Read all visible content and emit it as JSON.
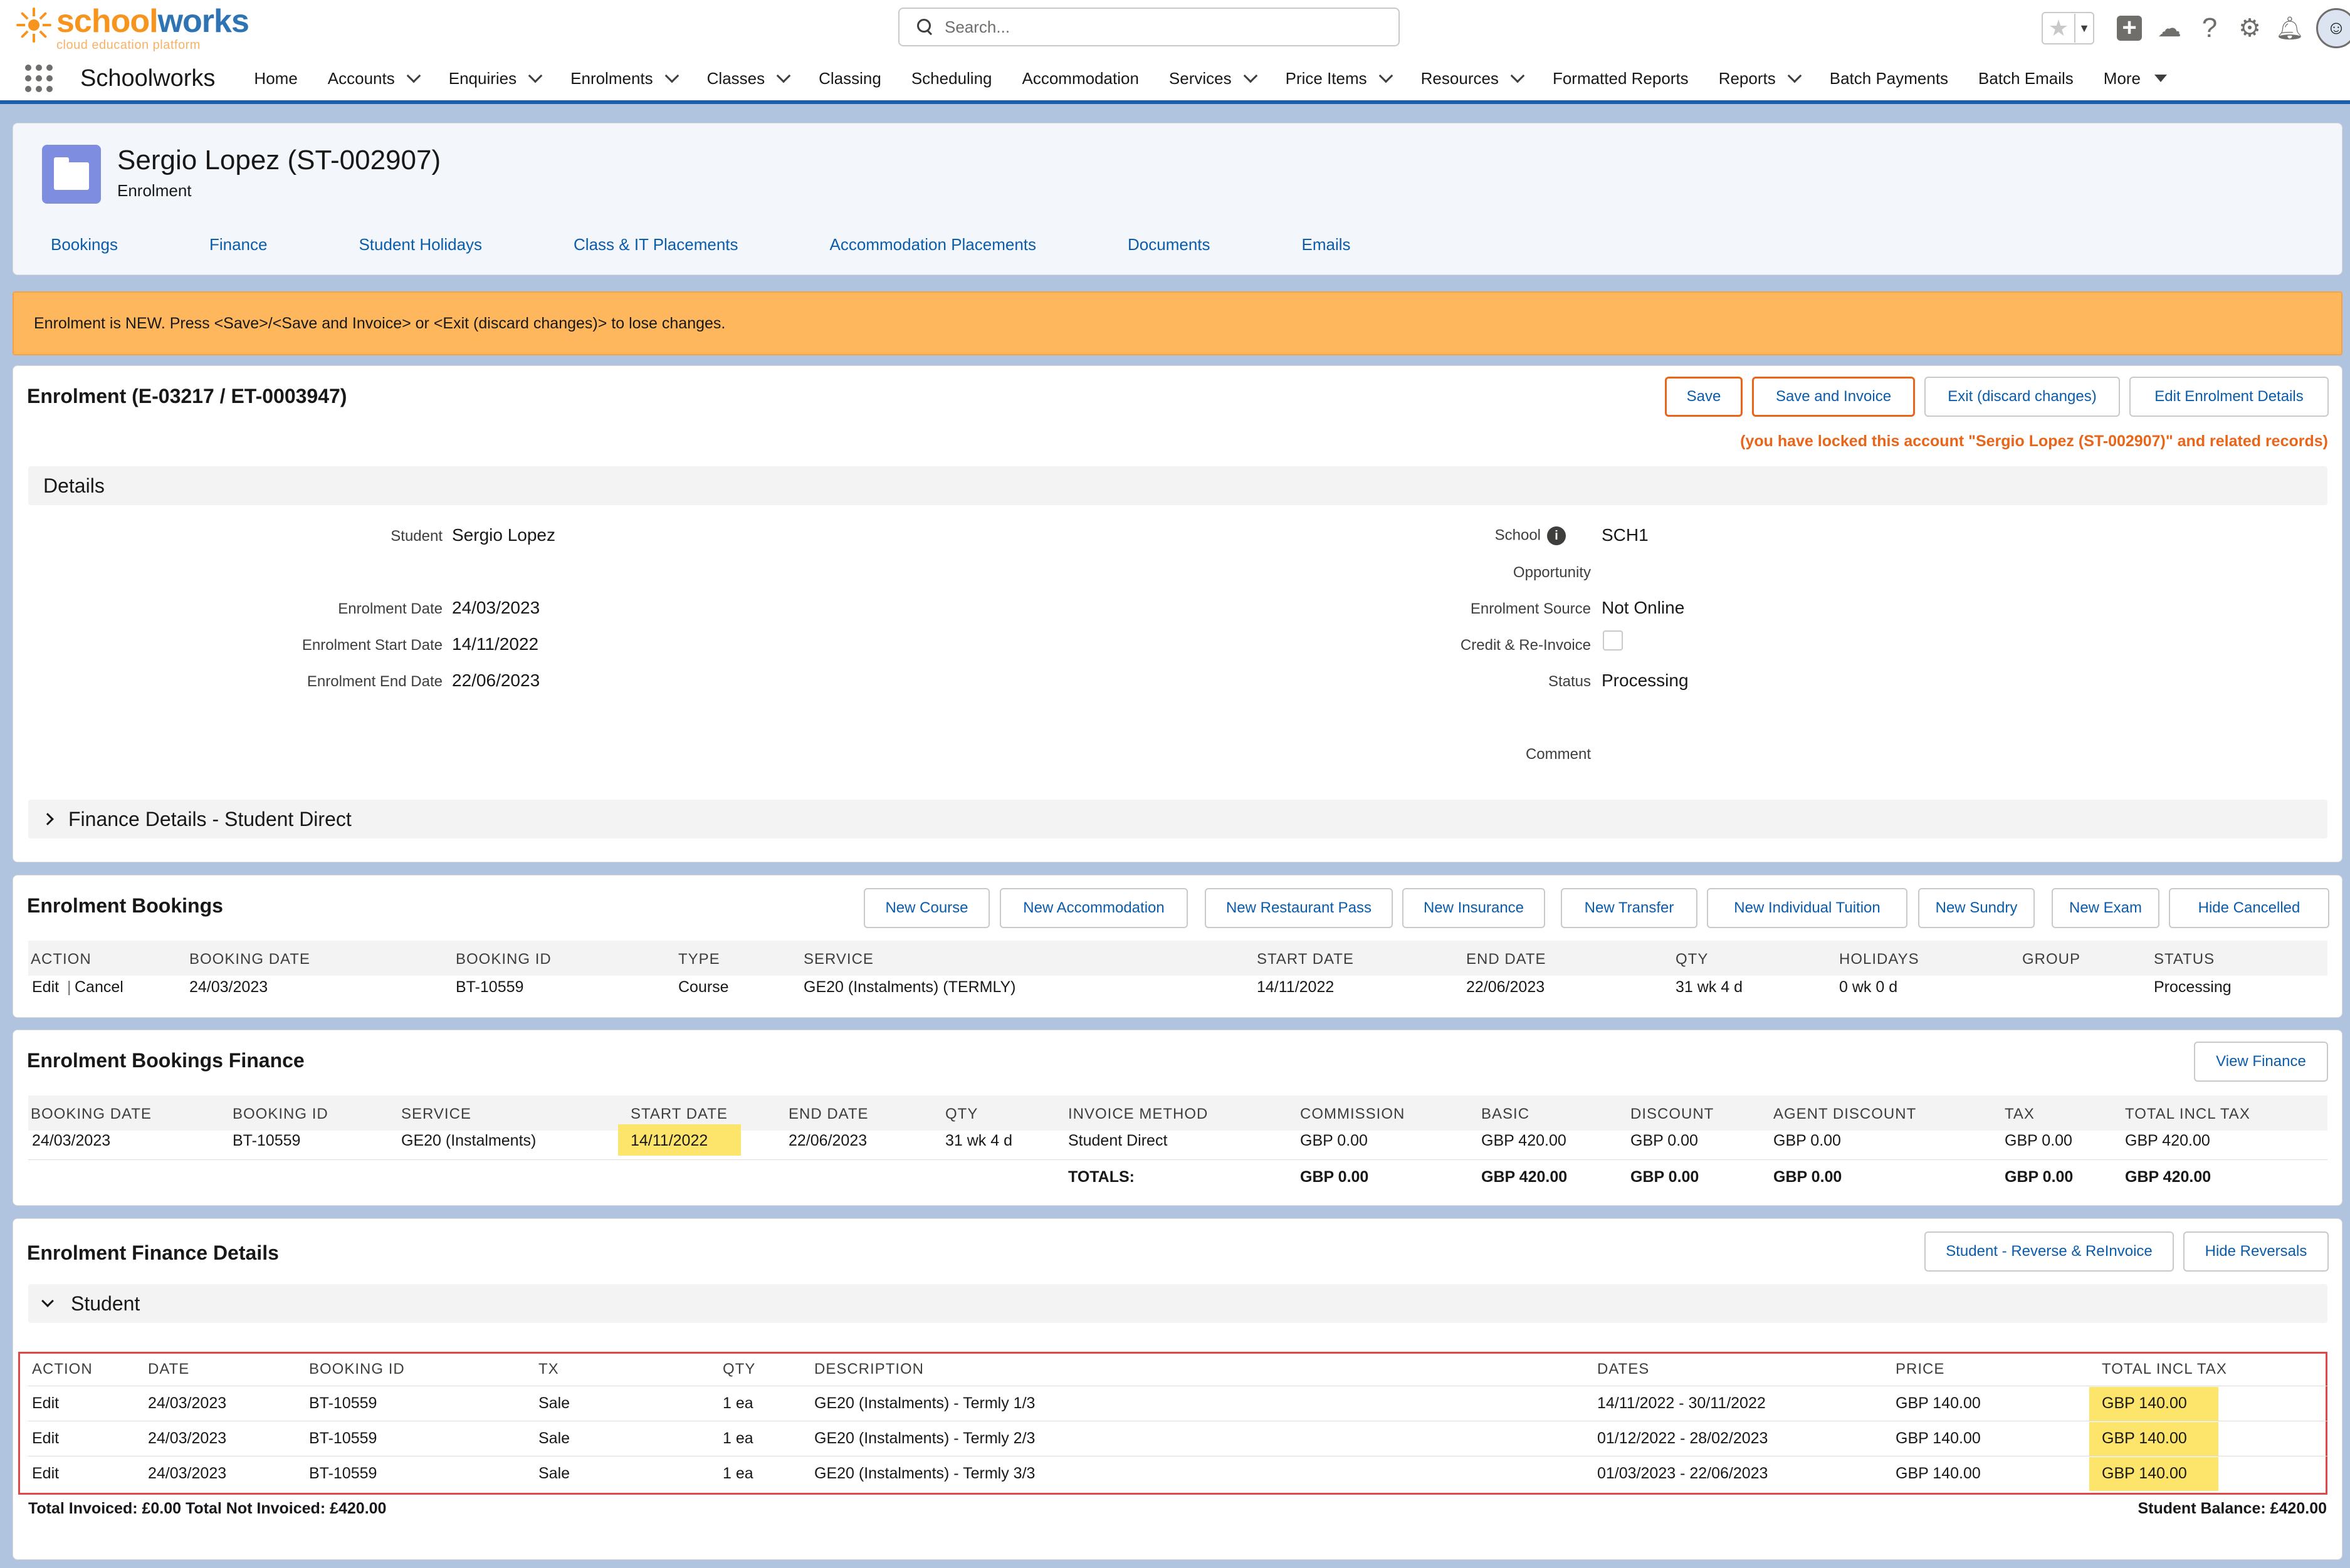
{
  "header": {
    "logo_main_a": "school",
    "logo_main_b": "works",
    "logo_sub": "cloud education platform",
    "search_placeholder": "Search...",
    "icons": [
      "favorites-star-icon",
      "add-icon",
      "trailhead-icon",
      "help-icon",
      "setup-gear-icon",
      "notification-bell-icon",
      "user-avatar"
    ]
  },
  "nav": {
    "app_name": "Schoolworks",
    "items": [
      {
        "label": "Home",
        "dropdown": false
      },
      {
        "label": "Accounts",
        "dropdown": true
      },
      {
        "label": "Enquiries",
        "dropdown": true
      },
      {
        "label": "Enrolments",
        "dropdown": true
      },
      {
        "label": "Classes",
        "dropdown": true
      },
      {
        "label": "Classing",
        "dropdown": false
      },
      {
        "label": "Scheduling",
        "dropdown": false
      },
      {
        "label": "Accommodation",
        "dropdown": false
      },
      {
        "label": "Services",
        "dropdown": true
      },
      {
        "label": "Price Items",
        "dropdown": true
      },
      {
        "label": "Resources",
        "dropdown": true
      },
      {
        "label": "Formatted Reports",
        "dropdown": false
      },
      {
        "label": "Reports",
        "dropdown": true
      },
      {
        "label": "Batch Payments",
        "dropdown": false
      },
      {
        "label": "Batch Emails",
        "dropdown": false
      }
    ],
    "more_label": "More"
  },
  "record": {
    "title": "Sergio Lopez (ST-002907)",
    "type": "Enrolment",
    "tabs": [
      "Bookings",
      "Finance",
      "Student Holidays",
      "Class & IT Placements",
      "Accommodation Placements",
      "Documents",
      "Emails"
    ]
  },
  "alert": {
    "text": "Enrolment is NEW. Press <Save>/<Save and Invoice> or <Exit (discard changes)> to lose changes."
  },
  "enrolment": {
    "title": "Enrolment (E-03217 / ET-0003947)",
    "buttons": {
      "save": "Save",
      "save_invoice": "Save and Invoice",
      "exit": "Exit (discard changes)",
      "edit_details": "Edit Enrolment Details"
    },
    "lock_message": "(you have locked this account \"Sergio Lopez (ST-002907)\" and related records)",
    "details_label": "Details",
    "fields": {
      "student_label": "Student",
      "student_value": "Sergio Lopez",
      "enrolment_date_label": "Enrolment Date",
      "enrolment_date_value": "24/03/2023",
      "start_date_label": "Enrolment Start Date",
      "start_date_value": "14/11/2022",
      "end_date_label": "Enrolment End Date",
      "end_date_value": "22/06/2023",
      "school_label": "School",
      "school_value": "SCH1",
      "opportunity_label": "Opportunity",
      "source_label": "Enrolment Source",
      "source_value": "Not Online",
      "credit_label": "Credit & Re-Invoice",
      "credit_checked": false,
      "status_label": "Status",
      "status_value": "Processing",
      "comment_label": "Comment"
    },
    "finance_section": "Finance Details - Student Direct"
  },
  "bookings": {
    "title": "Enrolment Bookings",
    "buttons": [
      "New Course",
      "New Accommodation",
      "New Restaurant Pass",
      "New Insurance",
      "New Transfer",
      "New Individual Tuition",
      "New Sundry",
      "New Exam",
      "Hide Cancelled"
    ],
    "headers": [
      "ACTION",
      "BOOKING DATE",
      "BOOKING ID",
      "TYPE",
      "SERVICE",
      "START DATE",
      "END DATE",
      "QTY",
      "HOLIDAYS",
      "GROUP",
      "STATUS"
    ],
    "row": {
      "edit": "Edit",
      "sep": "|",
      "cancel": "Cancel",
      "booking_date": "24/03/2023",
      "booking_id": "BT-10559",
      "type": "Course",
      "service": "GE20 (Instalments) (TERMLY)",
      "start_date": "14/11/2022",
      "end_date": "22/06/2023",
      "qty": "31 wk 4 d",
      "holidays": "0 wk 0 d",
      "group": "",
      "status": "Processing"
    }
  },
  "bookings_finance": {
    "title": "Enrolment Bookings Finance",
    "view_button": "View Finance",
    "headers": [
      "BOOKING DATE",
      "BOOKING ID",
      "SERVICE",
      "START DATE",
      "END DATE",
      "QTY",
      "INVOICE METHOD",
      "COMMISSION",
      "BASIC",
      "DISCOUNT",
      "AGENT DISCOUNT",
      "TAX",
      "TOTAL INCL TAX"
    ],
    "row": {
      "booking_date": "24/03/2023",
      "booking_id": "BT-10559",
      "service": "GE20 (Instalments)",
      "start_date": "14/11/2022",
      "end_date": "22/06/2023",
      "qty": "31 wk 4 d",
      "invoice_method": "Student Direct",
      "commission": "GBP 0.00",
      "basic": "GBP 420.00",
      "discount": "GBP 0.00",
      "agent_discount": "GBP 0.00",
      "tax": "GBP 0.00",
      "total": "GBP 420.00"
    },
    "totals": {
      "label": "TOTALS:",
      "commission": "GBP 0.00",
      "basic": "GBP 420.00",
      "discount": "GBP 0.00",
      "agent_discount": "GBP 0.00",
      "tax": "GBP 0.00",
      "total": "GBP 420.00"
    }
  },
  "finance_details": {
    "title": "Enrolment Finance Details",
    "buttons": {
      "reverse": "Student - Reverse & ReInvoice",
      "hide": "Hide Reversals"
    },
    "student_section": "Student",
    "headers": [
      "ACTION",
      "DATE",
      "BOOKING ID",
      "TX",
      "QTY",
      "DESCRIPTION",
      "DATES",
      "PRICE",
      "TOTAL INCL TAX"
    ],
    "rows": [
      {
        "action": "Edit",
        "date": "24/03/2023",
        "booking_id": "BT-10559",
        "tx": "Sale",
        "qty": "1 ea",
        "description": "GE20 (Instalments) - Termly 1/3",
        "dates": "14/11/2022 - 30/11/2022",
        "price": "GBP 140.00",
        "total": "GBP 140.00"
      },
      {
        "action": "Edit",
        "date": "24/03/2023",
        "booking_id": "BT-10559",
        "tx": "Sale",
        "qty": "1 ea",
        "description": "GE20 (Instalments) - Termly 2/3",
        "dates": "01/12/2022 - 28/02/2023",
        "price": "GBP 140.00",
        "total": "GBP 140.00"
      },
      {
        "action": "Edit",
        "date": "24/03/2023",
        "booking_id": "BT-10559",
        "tx": "Sale",
        "qty": "1 ea",
        "description": "GE20 (Instalments) - Termly 3/3",
        "dates": "01/03/2023 - 22/06/2023",
        "price": "GBP 140.00",
        "total": "GBP 140.00"
      }
    ],
    "footer_left": "Total Invoiced: £0.00 Total Not Invoiced: £420.00",
    "footer_right": "Student Balance: £420.00"
  }
}
